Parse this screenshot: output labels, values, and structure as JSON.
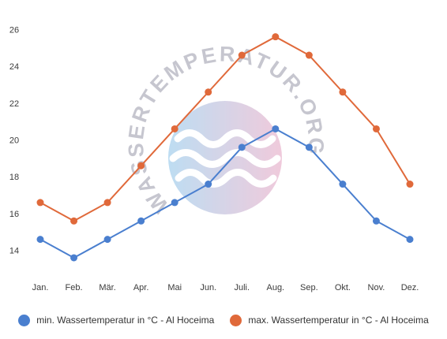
{
  "chart_data": {
    "type": "line",
    "categories": [
      "Jan.",
      "Feb.",
      "Mär.",
      "Apr.",
      "Mai",
      "Jun.",
      "Juli.",
      "Aug.",
      "Sep.",
      "Okt.",
      "Nov.",
      "Dez."
    ],
    "series": [
      {
        "name": "min. Wassertemperatur in °C - Al Hoceima",
        "color": "#4a7fcf",
        "values": [
          14.6,
          13.6,
          14.6,
          15.6,
          16.6,
          17.6,
          19.6,
          20.6,
          19.6,
          17.6,
          15.6,
          14.6
        ]
      },
      {
        "name": "max. Wassertemperatur in °C - Al Hoceima",
        "color": "#e0693a",
        "values": [
          16.6,
          15.6,
          16.6,
          18.6,
          20.6,
          22.6,
          24.6,
          25.6,
          24.6,
          22.6,
          20.6,
          17.6
        ]
      }
    ],
    "y_ticks": [
      14,
      16,
      18,
      20,
      22,
      24,
      26
    ],
    "ylim": [
      12.7,
      26.4
    ],
    "grid": false,
    "legend_position": "bottom",
    "xlabel": "",
    "ylabel": "",
    "title": ""
  },
  "watermark": {
    "text": "WASSERTEMPERATUR.ORG"
  }
}
